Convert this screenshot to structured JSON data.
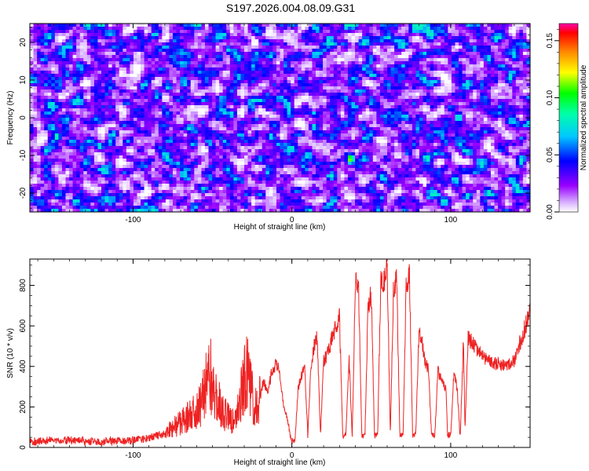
{
  "title": "S197.2026.004.08.09.G31",
  "chart_data": [
    {
      "type": "heatmap",
      "xlabel": "Height of straight line (km)",
      "ylabel": "Frequency (Hz)",
      "xlim": [
        -165,
        150
      ],
      "ylim": [
        -25,
        25
      ],
      "x_ticks": [
        -100,
        0,
        100
      ],
      "y_ticks": [
        -20,
        -10,
        0,
        10,
        20
      ],
      "x_tick_labels": [
        "-100",
        "0",
        "100"
      ],
      "y_tick_labels": [
        "-20",
        "-10",
        "0",
        "10",
        "20"
      ],
      "grid": false,
      "colorbar": {
        "label": "Normalized spectral amplitude",
        "range": [
          0,
          0.165
        ],
        "ticks": [
          0,
          0.05,
          0.1,
          0.15
        ],
        "tick_labels": [
          "0.00",
          "0.05",
          "0.10",
          "0.15"
        ],
        "colors": [
          "#ffffff",
          "#9900ff",
          "#0000ff",
          "#00ffff",
          "#00ff00",
          "#ffff00",
          "#ff8800",
          "#ff0000",
          "#ff00aa"
        ]
      },
      "grid_size": {
        "nx": 140,
        "ny": 60
      },
      "value_range_typical": [
        0.0,
        0.08
      ],
      "hotspots": [
        {
          "x": 37,
          "y": -11,
          "value": 0.12
        },
        {
          "x": -148,
          "y": -5,
          "value": 0.09
        },
        {
          "x": 105,
          "y": 0,
          "value": 0.09
        },
        {
          "x": -68,
          "y": -15,
          "value": 0.085
        }
      ]
    },
    {
      "type": "line",
      "xlabel": "Height of straight line (km)",
      "ylabel": "SNR (10 * v/v)",
      "xlim": [
        -165,
        150
      ],
      "ylim": [
        0,
        930
      ],
      "x_ticks": [
        -100,
        0,
        100
      ],
      "y_ticks": [
        0,
        200,
        400,
        600,
        800
      ],
      "x_tick_labels": [
        "-100",
        "0",
        "100"
      ],
      "y_tick_labels": [
        "0",
        "200",
        "400",
        "600",
        "800"
      ],
      "grid": false,
      "series": [
        {
          "name": "SNR",
          "color": "#ee2222",
          "x": [
            -165,
            -140,
            -120,
            -100,
            -90,
            -80,
            -72,
            -65,
            -58,
            -55,
            -52,
            -50,
            -48,
            -45,
            -42,
            -40,
            -38,
            -35,
            -32,
            -30,
            -28,
            -26,
            -24,
            -22,
            -20,
            -18,
            -15,
            -13,
            -10,
            -8,
            -5,
            -3,
            -1,
            0,
            2,
            4,
            6,
            8,
            10,
            12,
            14,
            16,
            18,
            20,
            23,
            26,
            28,
            30,
            32,
            34,
            36,
            38,
            40,
            42,
            44,
            46,
            48,
            50,
            52,
            54,
            56,
            58,
            60,
            62,
            64,
            66,
            68,
            70,
            72,
            74,
            76,
            78,
            80,
            82,
            84,
            86,
            88,
            90,
            92,
            95,
            97,
            98,
            100,
            102,
            104,
            106,
            108,
            109,
            111,
            115,
            120,
            125,
            130,
            135,
            140,
            145,
            148,
            150
          ],
          "y": [
            30,
            35,
            30,
            35,
            45,
            70,
            110,
            150,
            200,
            280,
            380,
            320,
            260,
            200,
            170,
            140,
            120,
            150,
            260,
            330,
            380,
            300,
            230,
            180,
            240,
            330,
            280,
            360,
            410,
            380,
            190,
            150,
            60,
            30,
            40,
            300,
            350,
            410,
            60,
            400,
            500,
            550,
            60,
            420,
            470,
            560,
            600,
            640,
            60,
            60,
            440,
            60,
            820,
            790,
            60,
            60,
            710,
            750,
            60,
            60,
            810,
            820,
            880,
            60,
            800,
            830,
            60,
            60,
            820,
            850,
            60,
            70,
            560,
            520,
            420,
            380,
            60,
            60,
            380,
            310,
            290,
            60,
            60,
            360,
            300,
            40,
            530,
            90,
            540,
            500,
            450,
            420,
            410,
            400,
            430,
            550,
            620,
            710
          ]
        }
      ]
    }
  ]
}
